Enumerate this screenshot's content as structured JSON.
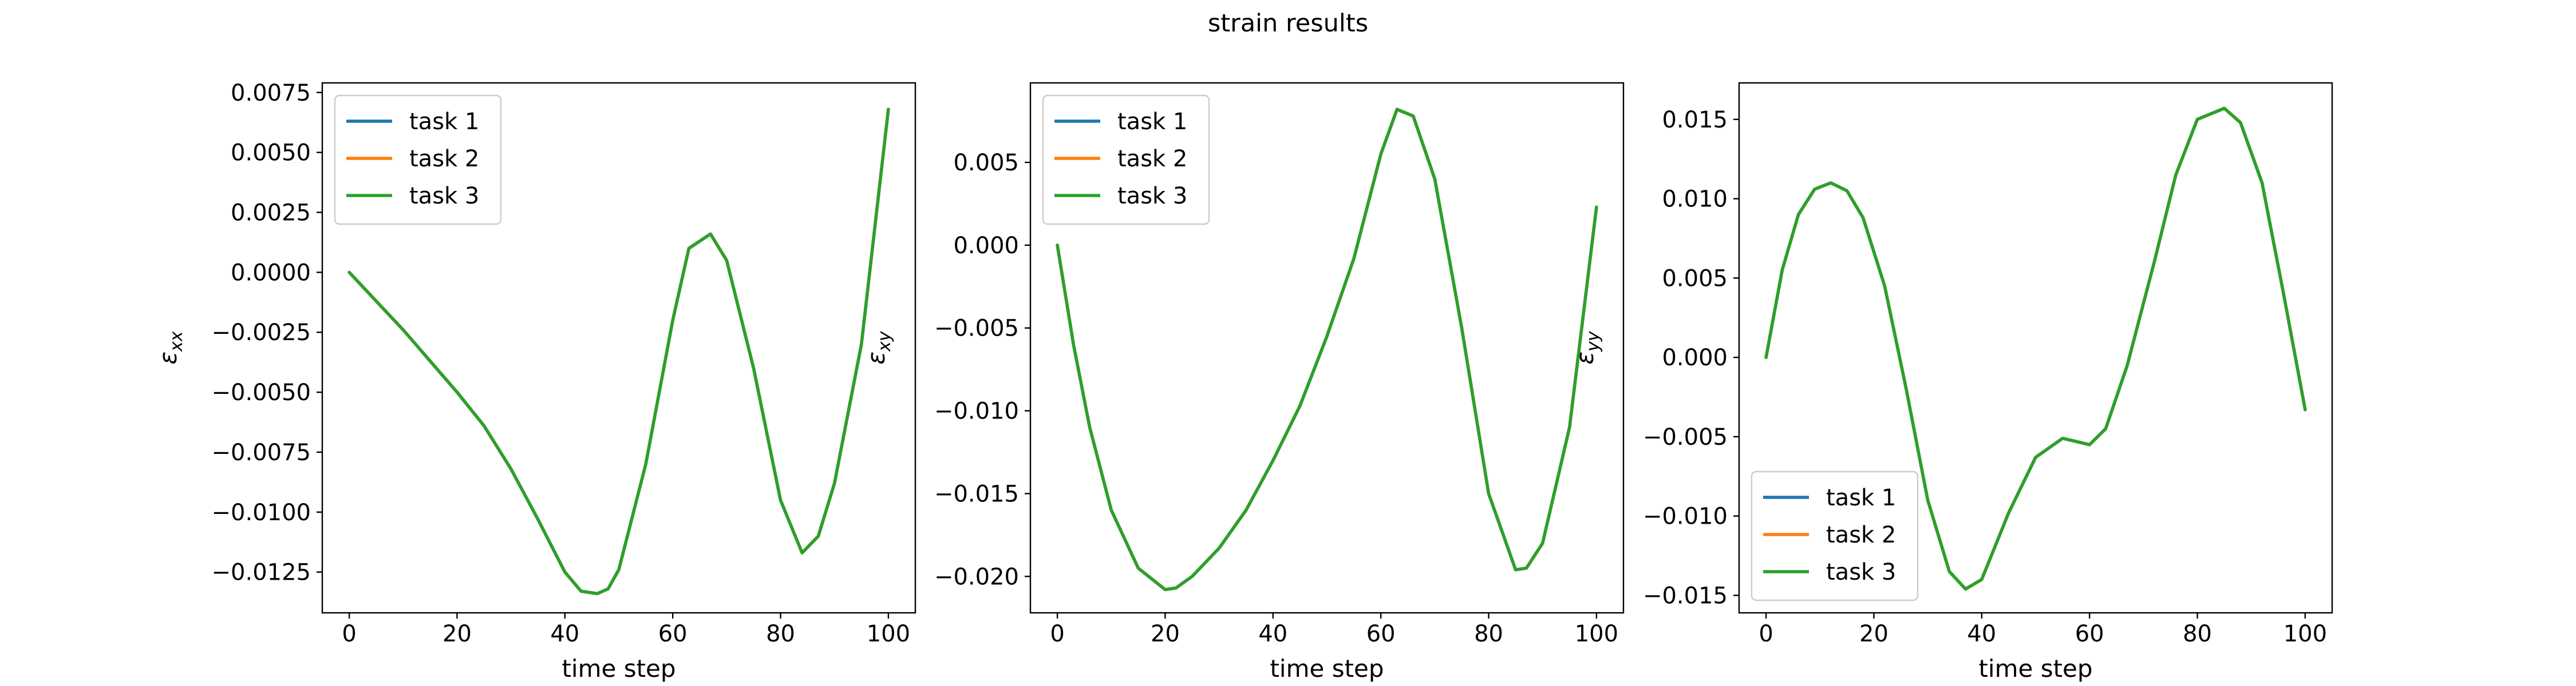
{
  "figure": {
    "suptitle": "strain results"
  },
  "chart_data": [
    {
      "type": "line",
      "title": "",
      "xlabel": "time step",
      "ylabel": "εxx",
      "ylabel_symbol": "ε",
      "ylabel_sub": "xx",
      "xlim": [
        -5,
        105
      ],
      "ylim": [
        -0.0142,
        0.0079
      ],
      "xticks": [
        0,
        20,
        40,
        60,
        80,
        100
      ],
      "xtick_labels": [
        "0",
        "20",
        "40",
        "60",
        "80",
        "100"
      ],
      "yticks": [
        -0.0125,
        -0.01,
        -0.0075,
        -0.005,
        -0.0025,
        0.0,
        0.0025,
        0.005,
        0.0075
      ],
      "ytick_labels": [
        "−0.0125",
        "−0.0100",
        "−0.0075",
        "−0.0050",
        "−0.0025",
        "0.0000",
        "0.0025",
        "0.0050",
        "0.0075"
      ],
      "grid": false,
      "legend": {
        "placement": "upper-left",
        "entries": [
          "task 1",
          "task 2",
          "task 3"
        ]
      },
      "x": [
        0,
        5,
        10,
        15,
        20,
        25,
        30,
        35,
        40,
        43,
        46,
        48,
        50,
        55,
        60,
        63,
        67,
        70,
        75,
        80,
        84,
        87,
        90,
        95,
        100
      ],
      "series": [
        {
          "name": "task 1",
          "color": "#1f77b4",
          "values": [
            0.0,
            -0.0012,
            -0.0024,
            -0.0037,
            -0.005,
            -0.0064,
            -0.0082,
            -0.0103,
            -0.0125,
            -0.0133,
            -0.0134,
            -0.0132,
            -0.0124,
            -0.008,
            -0.002,
            0.001,
            0.0016,
            0.0005,
            -0.004,
            -0.0095,
            -0.0117,
            -0.011,
            -0.0088,
            -0.003,
            0.0068
          ]
        },
        {
          "name": "task 2",
          "color": "#ff7f0e",
          "values": [
            0.0,
            -0.0012,
            -0.0024,
            -0.0037,
            -0.005,
            -0.0064,
            -0.0082,
            -0.0103,
            -0.0125,
            -0.0133,
            -0.0134,
            -0.0132,
            -0.0124,
            -0.008,
            -0.002,
            0.001,
            0.0016,
            0.0005,
            -0.004,
            -0.0095,
            -0.0117,
            -0.011,
            -0.0088,
            -0.003,
            0.0068
          ]
        },
        {
          "name": "task 3",
          "color": "#2ca02c",
          "values": [
            0.0,
            -0.0012,
            -0.0024,
            -0.0037,
            -0.005,
            -0.0064,
            -0.0082,
            -0.0103,
            -0.0125,
            -0.0133,
            -0.0134,
            -0.0132,
            -0.0124,
            -0.008,
            -0.002,
            0.001,
            0.0016,
            0.0005,
            -0.004,
            -0.0095,
            -0.0117,
            -0.011,
            -0.0088,
            -0.003,
            0.0068
          ]
        }
      ]
    },
    {
      "type": "line",
      "title": "",
      "xlabel": "time step",
      "ylabel": "εxy",
      "ylabel_symbol": "ε",
      "ylabel_sub": "xy",
      "xlim": [
        -5,
        105
      ],
      "ylim": [
        -0.0222,
        0.0098
      ],
      "xticks": [
        0,
        20,
        40,
        60,
        80,
        100
      ],
      "xtick_labels": [
        "0",
        "20",
        "40",
        "60",
        "80",
        "100"
      ],
      "yticks": [
        -0.02,
        -0.015,
        -0.01,
        -0.005,
        0.0,
        0.005
      ],
      "ytick_labels": [
        "−0.020",
        "−0.015",
        "−0.010",
        "−0.005",
        "0.000",
        "0.005"
      ],
      "grid": false,
      "legend": {
        "placement": "upper-left",
        "entries": [
          "task 1",
          "task 2",
          "task 3"
        ]
      },
      "x": [
        0,
        3,
        6,
        10,
        15,
        20,
        22,
        25,
        30,
        35,
        40,
        45,
        50,
        55,
        60,
        63,
        66,
        70,
        75,
        80,
        85,
        87,
        90,
        95,
        100
      ],
      "series": [
        {
          "name": "task 1",
          "color": "#1f77b4",
          "values": [
            0.0,
            -0.006,
            -0.011,
            -0.016,
            -0.0195,
            -0.0208,
            -0.0207,
            -0.02,
            -0.0183,
            -0.016,
            -0.013,
            -0.0097,
            -0.0055,
            -0.0008,
            0.0055,
            0.0082,
            0.0078,
            0.004,
            -0.005,
            -0.015,
            -0.0196,
            -0.0195,
            -0.018,
            -0.011,
            0.0023
          ]
        },
        {
          "name": "task 2",
          "color": "#ff7f0e",
          "values": [
            0.0,
            -0.006,
            -0.011,
            -0.016,
            -0.0195,
            -0.0208,
            -0.0207,
            -0.02,
            -0.0183,
            -0.016,
            -0.013,
            -0.0097,
            -0.0055,
            -0.0008,
            0.0055,
            0.0082,
            0.0078,
            0.004,
            -0.005,
            -0.015,
            -0.0196,
            -0.0195,
            -0.018,
            -0.011,
            0.0023
          ]
        },
        {
          "name": "task 3",
          "color": "#2ca02c",
          "values": [
            0.0,
            -0.006,
            -0.011,
            -0.016,
            -0.0195,
            -0.0208,
            -0.0207,
            -0.02,
            -0.0183,
            -0.016,
            -0.013,
            -0.0097,
            -0.0055,
            -0.0008,
            0.0055,
            0.0082,
            0.0078,
            0.004,
            -0.005,
            -0.015,
            -0.0196,
            -0.0195,
            -0.018,
            -0.011,
            0.0023
          ]
        }
      ]
    },
    {
      "type": "line",
      "title": "",
      "xlabel": "time step",
      "ylabel": "εyy",
      "ylabel_symbol": "ε",
      "ylabel_sub": "yy",
      "xlim": [
        -5,
        105
      ],
      "ylim": [
        -0.0161,
        0.0173
      ],
      "xticks": [
        0,
        20,
        40,
        60,
        80,
        100
      ],
      "xtick_labels": [
        "0",
        "20",
        "40",
        "60",
        "80",
        "100"
      ],
      "yticks": [
        -0.015,
        -0.01,
        -0.005,
        0.0,
        0.005,
        0.01,
        0.015
      ],
      "ytick_labels": [
        "−0.015",
        "−0.010",
        "−0.005",
        "0.000",
        "0.005",
        "0.010",
        "0.015"
      ],
      "grid": false,
      "legend": {
        "placement": "lower-left",
        "entries": [
          "task 1",
          "task 2",
          "task 3"
        ]
      },
      "x": [
        0,
        3,
        6,
        9,
        12,
        15,
        18,
        22,
        26,
        30,
        34,
        37,
        40,
        45,
        50,
        55,
        60,
        63,
        67,
        72,
        76,
        80,
        85,
        88,
        92,
        96,
        100
      ],
      "series": [
        {
          "name": "task 1",
          "color": "#1f77b4",
          "values": [
            0.0,
            0.0055,
            0.009,
            0.0106,
            0.011,
            0.0105,
            0.0088,
            0.0045,
            -0.002,
            -0.009,
            -0.0135,
            -0.0146,
            -0.014,
            -0.0098,
            -0.0063,
            -0.0051,
            -0.0055,
            -0.0045,
            -0.0005,
            0.006,
            0.0115,
            0.015,
            0.0157,
            0.0148,
            0.011,
            0.004,
            -0.0033
          ]
        },
        {
          "name": "task 2",
          "color": "#ff7f0e",
          "values": [
            0.0,
            0.0055,
            0.009,
            0.0106,
            0.011,
            0.0105,
            0.0088,
            0.0045,
            -0.002,
            -0.009,
            -0.0135,
            -0.0146,
            -0.014,
            -0.0098,
            -0.0063,
            -0.0051,
            -0.0055,
            -0.0045,
            -0.0005,
            0.006,
            0.0115,
            0.015,
            0.0157,
            0.0148,
            0.011,
            0.004,
            -0.0033
          ]
        },
        {
          "name": "task 3",
          "color": "#2ca02c",
          "values": [
            0.0,
            0.0055,
            0.009,
            0.0106,
            0.011,
            0.0105,
            0.0088,
            0.0045,
            -0.002,
            -0.009,
            -0.0135,
            -0.0146,
            -0.014,
            -0.0098,
            -0.0063,
            -0.0051,
            -0.0055,
            -0.0045,
            -0.0005,
            0.006,
            0.0115,
            0.015,
            0.0157,
            0.0148,
            0.011,
            0.004,
            -0.0033
          ]
        }
      ]
    }
  ]
}
